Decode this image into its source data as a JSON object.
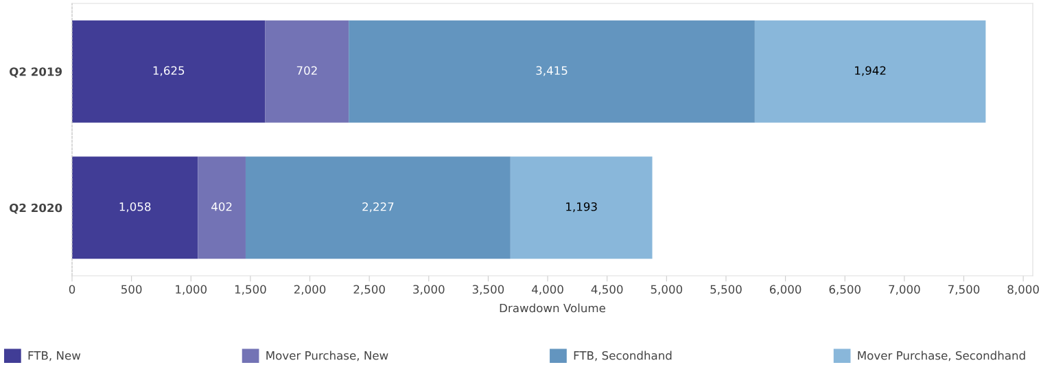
{
  "chart_data": {
    "type": "bar",
    "orientation": "horizontal",
    "stacked": true,
    "xlabel": "Drawdown Volume",
    "categories": [
      "Q2 2019",
      "Q2 2020"
    ],
    "series": [
      {
        "name": "FTB, New",
        "color": "#413d96",
        "values": [
          1625,
          1058
        ],
        "value_labels": [
          "1,625",
          "1,058"
        ]
      },
      {
        "name": "Mover Purchase, New",
        "color": "#7373b5",
        "values": [
          702,
          402
        ],
        "value_labels": [
          "702",
          "402"
        ]
      },
      {
        "name": "FTB, Secondhand",
        "color": "#6395bf",
        "values": [
          3415,
          2227
        ],
        "value_labels": [
          "3,415",
          "2,227"
        ]
      },
      {
        "name": "Mover Purchase, Secondhand",
        "color": "#89b7da",
        "values": [
          1942,
          1193
        ],
        "value_labels": [
          "1,942",
          "1,193"
        ]
      }
    ],
    "xlim": [
      0,
      8080
    ],
    "xticks": [
      0,
      500,
      {
        "value": 1000,
        "label": "1,000"
      },
      {
        "value": 1500,
        "label": "1,500"
      },
      {
        "value": 2000,
        "label": "2,000"
      },
      {
        "value": 2500,
        "label": "2,500"
      },
      {
        "value": 3000,
        "label": "3,000"
      },
      {
        "value": 3500,
        "label": "3,500"
      },
      {
        "value": 4000,
        "label": "4,000"
      },
      {
        "value": 4500,
        "label": "4,500"
      },
      {
        "value": 5000,
        "label": "5,000"
      },
      {
        "value": 5500,
        "label": "5,500"
      },
      {
        "value": 6000,
        "label": "6,000"
      },
      {
        "value": 6500,
        "label": "6,500"
      },
      {
        "value": 7000,
        "label": "7,000"
      },
      {
        "value": 7500,
        "label": "7,500"
      },
      {
        "value": 8000,
        "label": "8,000"
      }
    ],
    "grid": false,
    "legend": "bottom"
  }
}
